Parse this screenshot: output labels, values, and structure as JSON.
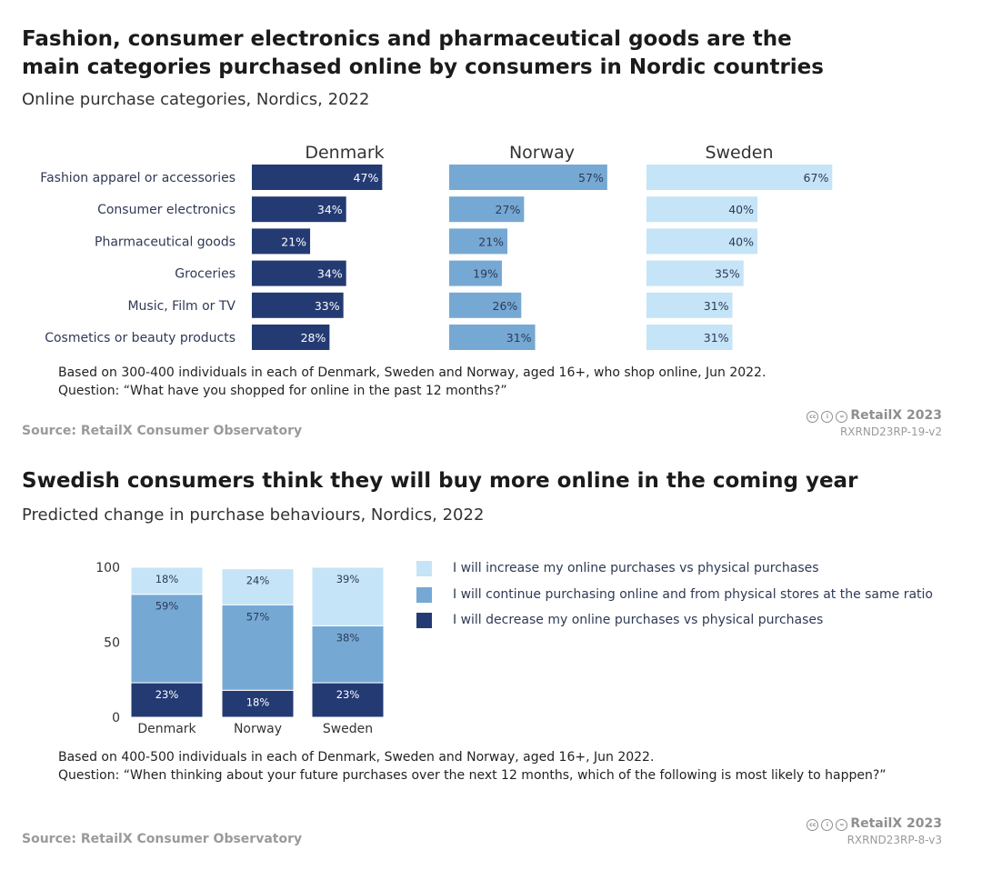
{
  "colors": {
    "dark": "#243a73",
    "mid": "#76a8d4",
    "light": "#c5e4f7",
    "label_dark": "#ffffff",
    "label_light": "#2e3a55"
  },
  "chart1": {
    "title_line1": "Fashion, consumer electronics and pharmaceutical goods are the",
    "title_line2": "main categories purchased online by consumers in Nordic countries",
    "subtitle": "Online purchase categories, Nordics, 2022",
    "note_line1": "Based on 300-400 individuals in each of Denmark, Sweden and Norway, aged 16+, who shop online, Jun 2022.",
    "note_line2": "Question: “What have you shopped for online in the past 12 months?”",
    "source": "Source: RetailX Consumer Observatory",
    "brand": "RetailX 2023",
    "code": "RXRND23RP-19-v2"
  },
  "chart2": {
    "title": "Swedish consumers think they will buy more online in the coming year",
    "subtitle": "Predicted change in purchase behaviours, Nordics, 2022",
    "note_line1": "Based on 400-500 individuals in each of Denmark, Sweden and Norway, aged 16+, Jun 2022.",
    "note_line2": "Question: “When thinking about your future purchases over the next 12 months, which of the following is most likely to happen?”",
    "source": "Source: RetailX Consumer Observatory",
    "brand": "RetailX 2023",
    "code": "RXRND23RP-8-v3"
  },
  "chart_data": [
    {
      "type": "bar",
      "orientation": "horizontal",
      "title": "Fashion, consumer electronics and pharmaceutical goods are the main categories purchased online by consumers in Nordic countries",
      "subtitle": "Online purchase categories, Nordics, 2022",
      "categories": [
        "Fashion apparel or accessories",
        "Consumer electronics",
        "Pharmaceutical goods",
        "Groceries",
        "Music, Film or TV",
        "Cosmetics or beauty products"
      ],
      "unit": "%",
      "xlim": [
        0,
        100
      ],
      "panels": [
        {
          "name": "Denmark",
          "values": [
            47,
            34,
            21,
            34,
            33,
            28
          ]
        },
        {
          "name": "Norway",
          "values": [
            57,
            27,
            21,
            19,
            26,
            31
          ]
        },
        {
          "name": "Sweden",
          "values": [
            67,
            40,
            40,
            35,
            31,
            31
          ]
        }
      ]
    },
    {
      "type": "bar",
      "stacked": true,
      "title": "Swedish consumers think they will buy more online in the coming year",
      "subtitle": "Predicted change in purchase behaviours, Nordics, 2022",
      "categories": [
        "Denmark",
        "Norway",
        "Sweden"
      ],
      "ylim": [
        0,
        100
      ],
      "yticks": [
        0,
        50,
        100
      ],
      "unit": "%",
      "series": [
        {
          "name": "I will decrease my online purchases vs physical purchases",
          "values": [
            23,
            18,
            23
          ]
        },
        {
          "name": "I will continue purchasing online and from physical stores at the same ratio",
          "values": [
            59,
            57,
            38
          ]
        },
        {
          "name": "I will increase my online purchases vs physical purchases",
          "values": [
            18,
            24,
            39
          ]
        }
      ],
      "legend_position": "right",
      "legend_order": [
        2,
        1,
        0
      ]
    }
  ]
}
